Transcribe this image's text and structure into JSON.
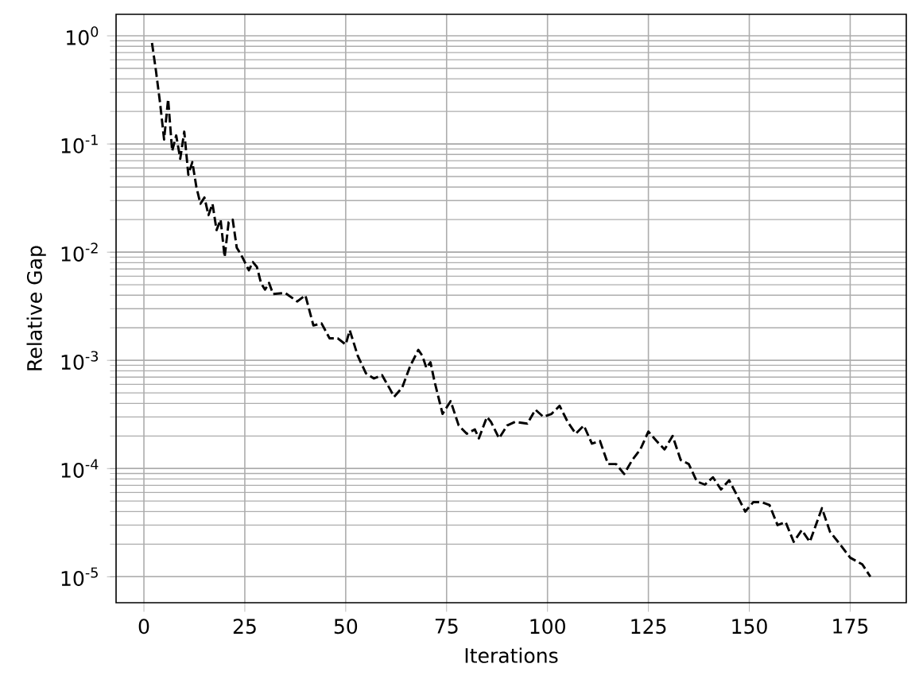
{
  "chart_data": {
    "type": "line",
    "xlabel": "Iterations",
    "ylabel": "Relative Gap",
    "log": "y",
    "grid": true,
    "line_style": "dashed",
    "marker": "none",
    "xlim": [
      -6.9,
      188.9
    ],
    "ylim": [
      5.75e-06,
      1.58
    ],
    "xticks": [
      0,
      25,
      50,
      75,
      100,
      125,
      150,
      175
    ],
    "yticks": [
      {
        "value": 1e-05,
        "label": "10$^{-5}$"
      },
      {
        "value": 0.0001,
        "label": "10$^{-4}$"
      },
      {
        "value": 0.001,
        "label": "10$^{-3}$"
      },
      {
        "value": 0.01,
        "label": "10$^{-2}$"
      },
      {
        "value": 0.1,
        "label": "10$^{-1}$"
      },
      {
        "value": 1,
        "label": "10$^{0}$"
      }
    ],
    "x": [
      2,
      3,
      4,
      5,
      6,
      7,
      8,
      9,
      10,
      11,
      12,
      13,
      14,
      15,
      16,
      17,
      18,
      19,
      20,
      21,
      22,
      23,
      24,
      25,
      26,
      27,
      28,
      29,
      30,
      31,
      32,
      35,
      38,
      40,
      42,
      44,
      46,
      48,
      50,
      51,
      53,
      55,
      57,
      59,
      61,
      62,
      64,
      66,
      68,
      69,
      70,
      71,
      72,
      74,
      76,
      78,
      80,
      82,
      83,
      85,
      86,
      88,
      90,
      92,
      95,
      97,
      99,
      101,
      103,
      105,
      107,
      109,
      111,
      113,
      115,
      117,
      119,
      121,
      123,
      125,
      127,
      129,
      131,
      133,
      135,
      137,
      139,
      141,
      143,
      145,
      147,
      149,
      151,
      153,
      155,
      157,
      159,
      161,
      163,
      165,
      168,
      170,
      172,
      175,
      178,
      180
    ],
    "series": [
      {
        "color": "#000000",
        "values": [
          0.86,
          0.47,
          0.24,
          0.11,
          0.26,
          0.086,
          0.12,
          0.073,
          0.13,
          0.052,
          0.068,
          0.04,
          0.028,
          0.032,
          0.022,
          0.028,
          0.016,
          0.02,
          0.009,
          0.019,
          0.02,
          0.011,
          0.0096,
          0.0081,
          0.0068,
          0.0081,
          0.0073,
          0.0052,
          0.0045,
          0.0052,
          0.0041,
          0.0042,
          0.0035,
          0.004,
          0.0021,
          0.0022,
          0.0016,
          0.0016,
          0.0014,
          0.0019,
          0.0011,
          0.00076,
          0.00068,
          0.00073,
          0.00054,
          0.00046,
          0.00056,
          0.00089,
          0.00125,
          0.0011,
          0.00085,
          0.00096,
          0.00064,
          0.00032,
          0.00042,
          0.00025,
          0.00021,
          0.00023,
          0.00019,
          0.0003,
          0.00027,
          0.00019,
          0.00025,
          0.00027,
          0.00026,
          0.00035,
          0.0003,
          0.00032,
          0.00038,
          0.00027,
          0.00021,
          0.00025,
          0.00017,
          0.00018,
          0.00011,
          0.00011,
          8.9e-05,
          0.00012,
          0.00015,
          0.00022,
          0.00018,
          0.00015,
          0.0002,
          0.00012,
          0.00011,
          7.6e-05,
          7.1e-05,
          8.3e-05,
          6.4e-05,
          7.8e-05,
          5.6e-05,
          4e-05,
          4.9e-05,
          4.9e-05,
          4.6e-05,
          3e-05,
          3.2e-05,
          2.1e-05,
          2.7e-05,
          2.1e-05,
          4.3e-05,
          2.6e-05,
          2.1e-05,
          1.5e-05,
          1.3e-05,
          1e-05
        ]
      }
    ]
  }
}
